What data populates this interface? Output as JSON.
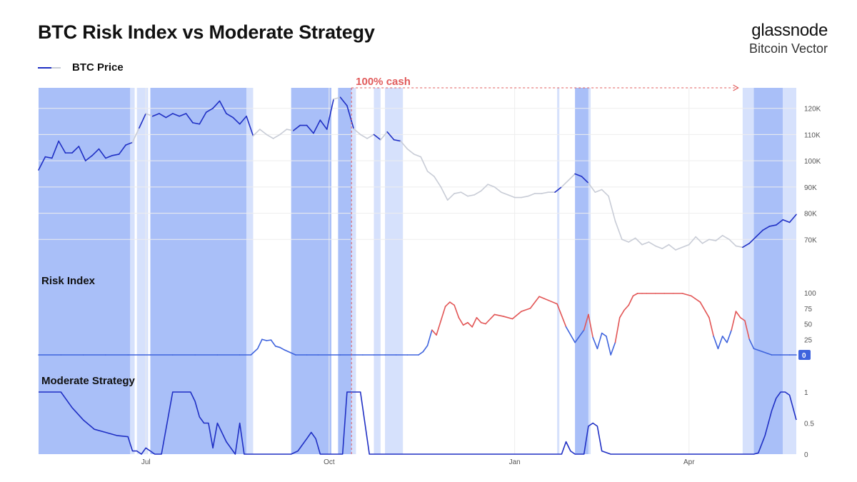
{
  "title": "BTC Risk Index vs Moderate Strategy",
  "brand": {
    "name": "glassnode",
    "sub": "Bitcoin Vector"
  },
  "legend": {
    "label": "BTC Price",
    "color": "#1f2fc4"
  },
  "colors": {
    "invested_line": "#1f2fc4",
    "cash_line": "#c8ccd6",
    "risk_low": "#3e63dd",
    "risk_high": "#e25555",
    "shade_dark": "#a9bff8",
    "shade_light": "#d6e1fc",
    "annotation": "#e15b5b"
  },
  "annotation": {
    "label": "100% cash"
  },
  "chart_data": [
    {
      "type": "line",
      "title": "",
      "series": [
        {
          "name": "BTC Price",
          "x": [
            0,
            3,
            6,
            9,
            12,
            15,
            18,
            21,
            24,
            27,
            30,
            33,
            36,
            39,
            42,
            45,
            48,
            51,
            54,
            57,
            60,
            63,
            66,
            69,
            72,
            75,
            78,
            81,
            84,
            87,
            90,
            93,
            96,
            99,
            102,
            105,
            108,
            111,
            114,
            117,
            120,
            123,
            126,
            129,
            132,
            135,
            138,
            141,
            144,
            147,
            150,
            153,
            156,
            159,
            162,
            165,
            168,
            171,
            174,
            177,
            180,
            183,
            186,
            189,
            192,
            195,
            198,
            201,
            204,
            207,
            210,
            213,
            216,
            219,
            222,
            225,
            228,
            231,
            234,
            237,
            240,
            243,
            246,
            249,
            252,
            255,
            258,
            261,
            264,
            267,
            270,
            273,
            276,
            279,
            282,
            285,
            288,
            291,
            294,
            297,
            300,
            303,
            306,
            309,
            312,
            315,
            318,
            321,
            324,
            327,
            330,
            333,
            336,
            339
          ],
          "y": [
            96500,
            101500,
            101000,
            107500,
            103000,
            103000,
            105500,
            100000,
            102000,
            104500,
            101000,
            102000,
            102500,
            106000,
            107000,
            112500,
            118000,
            117000,
            118000,
            116500,
            118000,
            117000,
            118000,
            114500,
            114000,
            118500,
            120000,
            122800,
            118000,
            116500,
            114000,
            117000,
            109500,
            112000,
            110000,
            108500,
            110000,
            112000,
            111500,
            113500,
            113500,
            110500,
            115500,
            112000,
            123500,
            124200,
            121000,
            112200,
            110000,
            108500,
            110000,
            108000,
            111000,
            108000,
            107500,
            104500,
            102500,
            101500,
            96000,
            94000,
            90000,
            85000,
            87500,
            88000,
            86500,
            87000,
            88500,
            91000,
            90000,
            88000,
            87000,
            86000,
            86000,
            86500,
            87500,
            87500,
            88000,
            88000,
            90000,
            92500,
            95000,
            94000,
            91500,
            88000,
            89000,
            86500,
            77000,
            70000,
            69000,
            70500,
            68000,
            69000,
            67500,
            66500,
            68000,
            66000,
            67000,
            68000,
            71000,
            68500,
            70000,
            69500,
            71500,
            70000,
            67500,
            67000,
            68500,
            71000,
            73500,
            75000,
            75500,
            77500,
            76500,
            79500
          ],
          "y_range": [
            60000,
            127000
          ]
        }
      ],
      "yticks": [
        "120K",
        "110K",
        "100K",
        "90K",
        "80K",
        "70K"
      ],
      "ytick_values": [
        120000,
        110000,
        100000,
        90000,
        80000,
        70000
      ]
    },
    {
      "type": "line",
      "title": "Risk Index",
      "series": [
        {
          "name": "",
          "x": [
            0,
            10,
            20,
            30,
            40,
            50,
            60,
            70,
            80,
            90,
            95,
            98,
            100,
            102,
            104,
            106,
            108,
            110,
            115,
            120,
            125,
            130,
            135,
            140,
            145,
            150,
            155,
            160,
            165,
            170,
            172,
            174,
            176,
            178,
            180,
            182,
            184,
            186,
            188,
            190,
            192,
            194,
            196,
            198,
            200,
            204,
            208,
            212,
            216,
            220,
            224,
            228,
            232,
            236,
            240,
            244,
            246,
            248,
            250,
            252,
            254,
            256,
            258,
            260,
            262,
            264,
            266,
            268,
            270,
            272,
            276,
            280,
            284,
            288,
            292,
            296,
            300,
            302,
            304,
            306,
            308,
            310,
            312,
            314,
            316,
            318,
            320,
            324,
            328,
            332,
            336,
            339
          ],
          "y": [
            0,
            0,
            0,
            0,
            0,
            0,
            0,
            0,
            0,
            0,
            0,
            10,
            25,
            23,
            24,
            14,
            12,
            8,
            0,
            0,
            0,
            0,
            0,
            0,
            0,
            0,
            0,
            0,
            0,
            0,
            5,
            15,
            40,
            32,
            55,
            78,
            85,
            80,
            60,
            48,
            52,
            45,
            60,
            52,
            50,
            65,
            62,
            58,
            70,
            75,
            94,
            88,
            82,
            45,
            20,
            40,
            65,
            28,
            10,
            35,
            30,
            0,
            20,
            60,
            72,
            80,
            95,
            99,
            99,
            99,
            99,
            99,
            99,
            99,
            95,
            85,
            60,
            30,
            10,
            30,
            20,
            40,
            70,
            60,
            55,
            25,
            10,
            5,
            0,
            0,
            0,
            0
          ]
        }
      ],
      "yticks": [
        "100",
        "75",
        "50",
        "25",
        "0"
      ],
      "ytick_values": [
        100,
        75,
        50,
        25,
        0
      ]
    },
    {
      "type": "line",
      "title": "Moderate Strategy",
      "series": [
        {
          "name": "",
          "x": [
            0,
            10,
            15,
            20,
            25,
            30,
            35,
            40,
            42,
            44,
            46,
            48,
            50,
            52,
            55,
            60,
            62,
            64,
            66,
            68,
            70,
            72,
            74,
            76,
            78,
            80,
            84,
            88,
            90,
            92,
            95,
            97,
            99,
            100,
            105,
            110,
            113,
            116,
            118,
            120,
            122,
            124,
            126,
            128,
            130,
            132,
            134,
            136,
            138,
            140,
            144,
            148,
            150,
            152,
            155,
            200,
            230,
            234,
            236,
            238,
            240,
            244,
            246,
            248,
            250,
            252,
            256,
            260,
            290,
            300,
            310,
            320,
            322,
            325,
            328,
            330,
            332,
            334,
            336,
            339
          ],
          "y": [
            1,
            1,
            0.75,
            0.55,
            0.4,
            0.35,
            0.3,
            0.28,
            0.05,
            0.05,
            0,
            0.1,
            0.05,
            0,
            0,
            1,
            1,
            1,
            1,
            1,
            0.85,
            0.6,
            0.5,
            0.5,
            0.1,
            0.5,
            0.2,
            0,
            0.5,
            0,
            0,
            0,
            0,
            0,
            0,
            0,
            0,
            0.05,
            0.15,
            0.25,
            0.35,
            0.25,
            0,
            0,
            0,
            0,
            0,
            0,
            1,
            1,
            1,
            0,
            0,
            0,
            0,
            0,
            0,
            0,
            0.2,
            0.05,
            0,
            0,
            0.45,
            0.5,
            0.45,
            0.05,
            0,
            0,
            0,
            0,
            0,
            0,
            0.02,
            0.3,
            0.7,
            0.9,
            1,
            1,
            0.95,
            0.55
          ],
          "y_range": [
            0,
            1
          ]
        }
      ],
      "yticks": [
        "1",
        "0.5",
        "0"
      ],
      "ytick_values": [
        1,
        0.5,
        0
      ]
    }
  ],
  "xticks": [
    "Jul",
    "Oct",
    "Jan",
    "Apr"
  ],
  "xtick_positions": [
    48,
    130,
    213,
    291
  ],
  "x_range": [
    0,
    339
  ],
  "shaded_regions": [
    {
      "x0": 0,
      "x1": 41,
      "tone": "dark"
    },
    {
      "x0": 41,
      "x1": 43,
      "tone": "light"
    },
    {
      "x0": 44,
      "x1": 49,
      "tone": "light"
    },
    {
      "x0": 50,
      "x1": 93,
      "tone": "dark"
    },
    {
      "x0": 93,
      "x1": 96,
      "tone": "light"
    },
    {
      "x0": 113,
      "x1": 131,
      "tone": "dark"
    },
    {
      "x0": 134,
      "x1": 140,
      "tone": "dark"
    },
    {
      "x0": 140,
      "x1": 142,
      "tone": "light"
    },
    {
      "x0": 150,
      "x1": 153,
      "tone": "light"
    },
    {
      "x0": 155,
      "x1": 163,
      "tone": "light"
    },
    {
      "x0": 232,
      "x1": 233,
      "tone": "light"
    },
    {
      "x0": 240,
      "x1": 246,
      "tone": "dark"
    },
    {
      "x0": 246,
      "x1": 247,
      "tone": "light"
    },
    {
      "x0": 315,
      "x1": 320,
      "tone": "light"
    },
    {
      "x0": 320,
      "x1": 333,
      "tone": "dark"
    },
    {
      "x0": 333,
      "x1": 339,
      "tone": "light"
    }
  ],
  "cash_period": {
    "x0": 140,
    "x1": 313
  }
}
